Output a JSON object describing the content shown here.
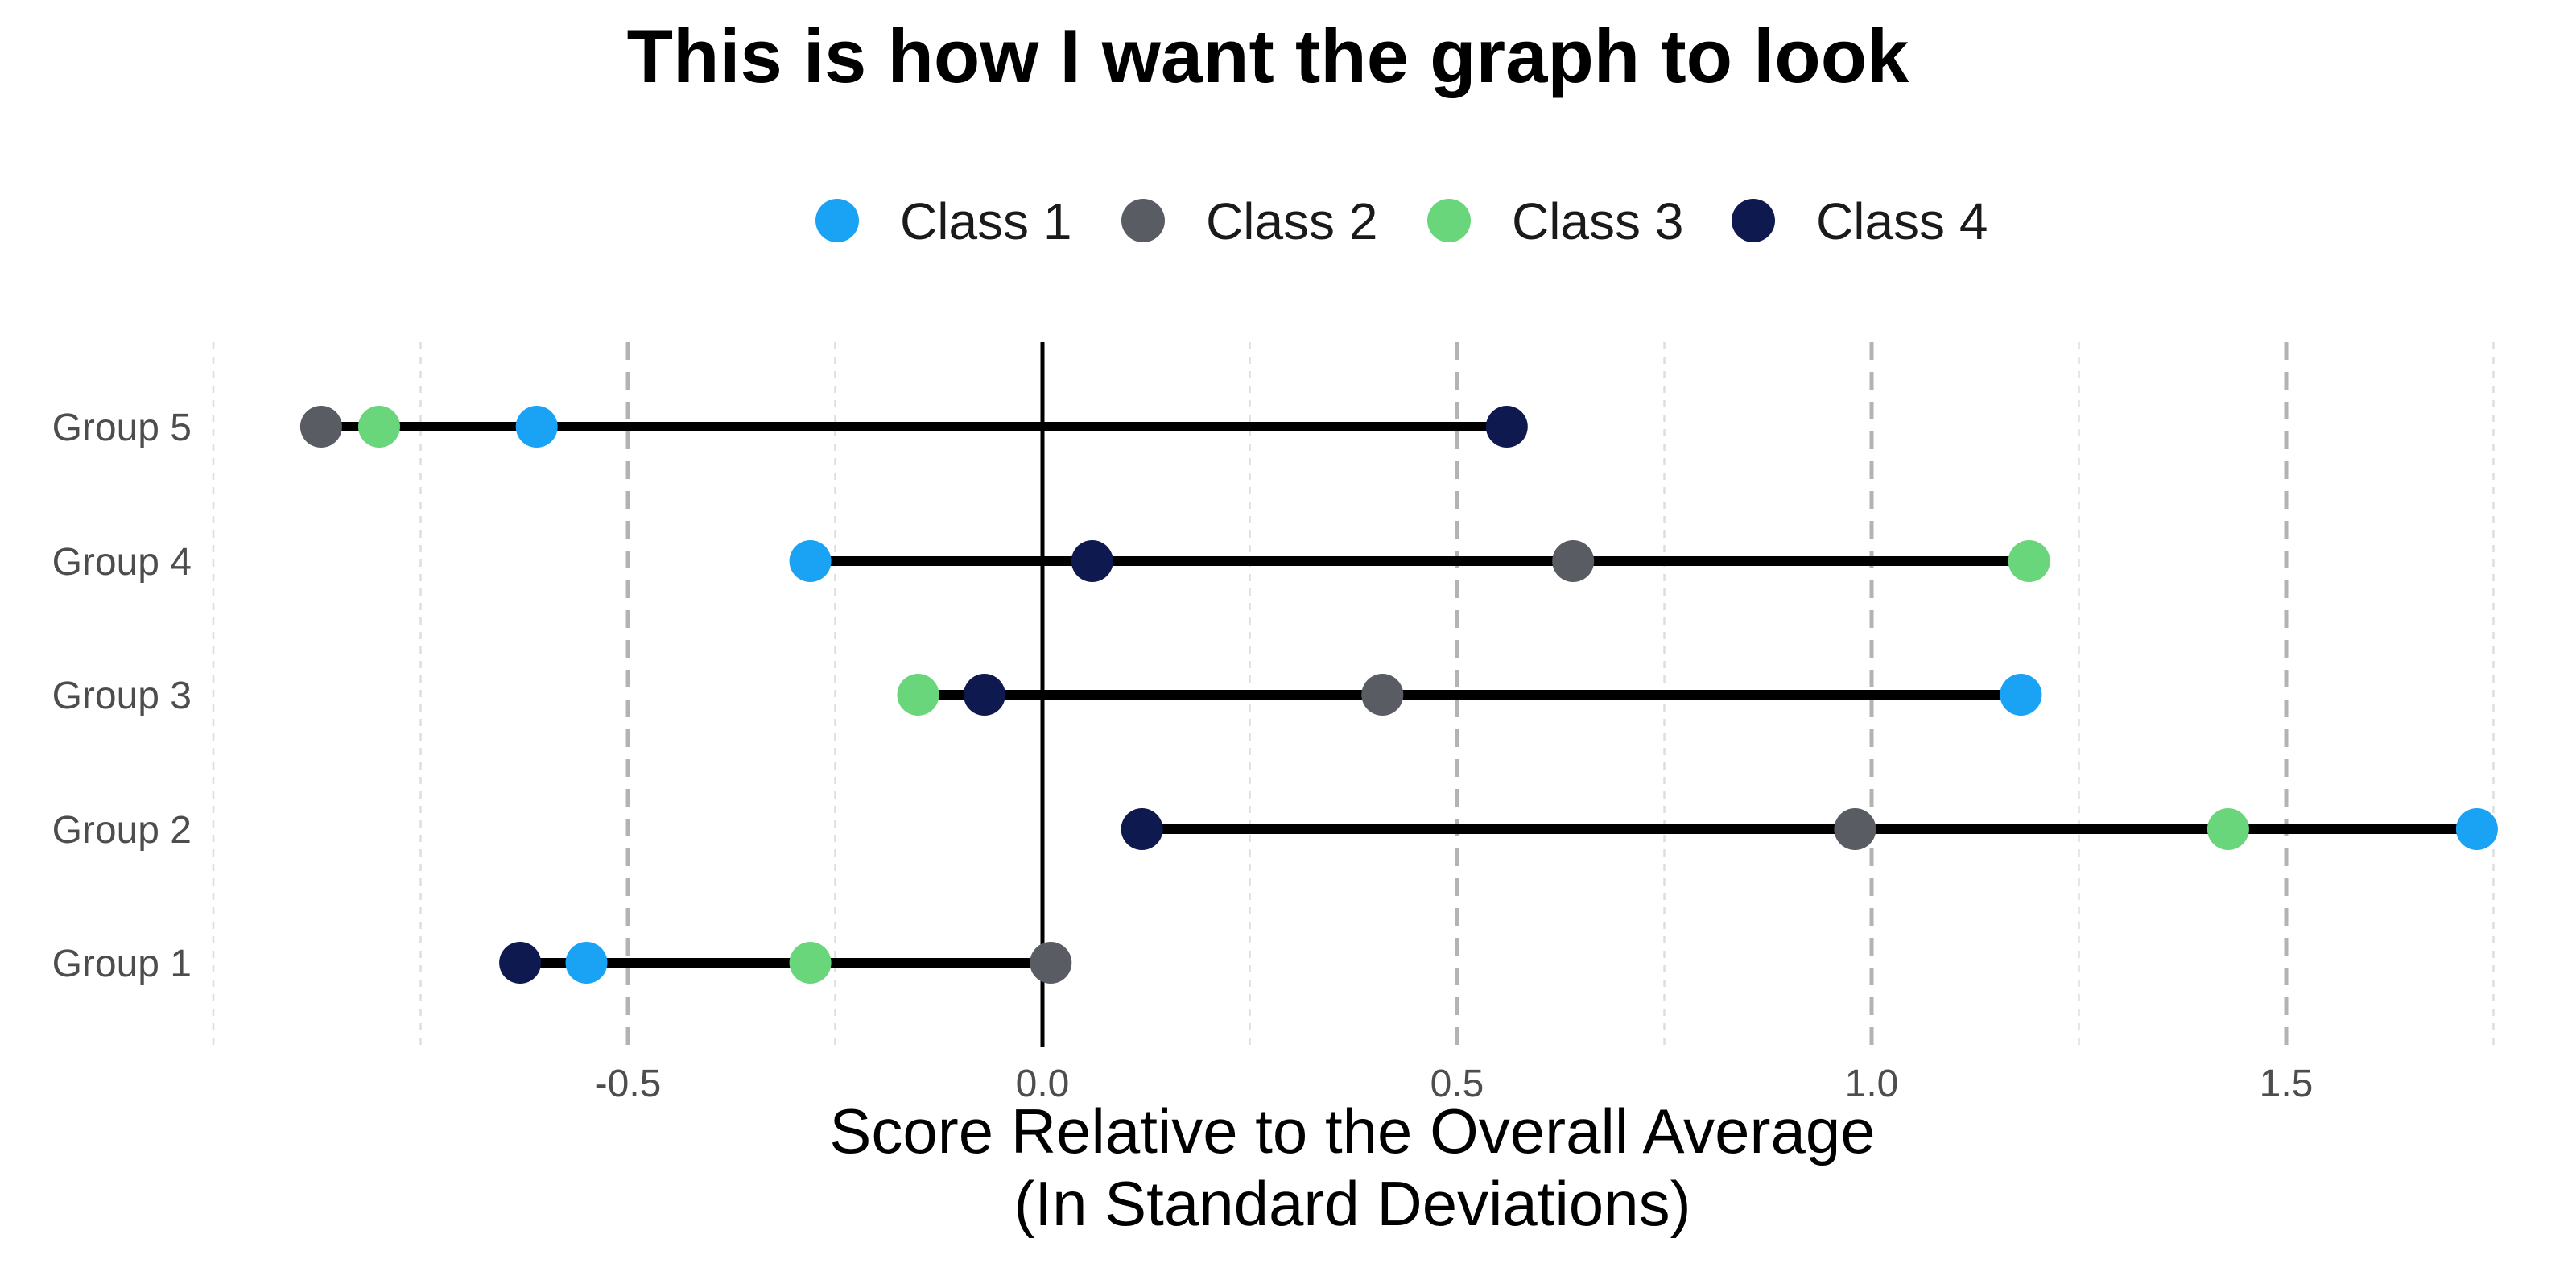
{
  "chart_data": {
    "type": "dumbbell",
    "title": "This is how I want the graph to look",
    "xlabel": [
      "Score Relative to the Overall Average",
      "(In Standard Deviations)"
    ],
    "ylabel": "",
    "xlim": [
      -1.0,
      1.75
    ],
    "x_ticks": [
      -0.5,
      0.0,
      0.5,
      1.0,
      1.5
    ],
    "x_tick_labels": [
      "-0.5",
      "0.0",
      "0.5",
      "1.0",
      "1.5"
    ],
    "x_minor_ticks": [
      -1.0,
      -0.75,
      -0.25,
      0.25,
      0.75,
      1.25,
      1.75
    ],
    "reference_line_x": 0,
    "legend_position": "top",
    "grid": true,
    "categories": [
      "Group 1",
      "Group 2",
      "Group 3",
      "Group 4",
      "Group 5"
    ],
    "series": [
      {
        "name": "Class 1",
        "color": "#1aa3f5",
        "values": [
          -0.55,
          1.73,
          1.18,
          -0.28,
          -0.61
        ]
      },
      {
        "name": "Class 2",
        "color": "#5a5c63",
        "values": [
          0.01,
          0.98,
          0.41,
          0.64,
          -0.87
        ]
      },
      {
        "name": "Class 3",
        "color": "#6ad67b",
        "values": [
          -0.28,
          1.43,
          -0.15,
          1.19,
          -0.8
        ]
      },
      {
        "name": "Class 4",
        "color": "#0e1a4f",
        "values": [
          -0.63,
          0.12,
          -0.07,
          0.06,
          0.56
        ]
      }
    ]
  }
}
